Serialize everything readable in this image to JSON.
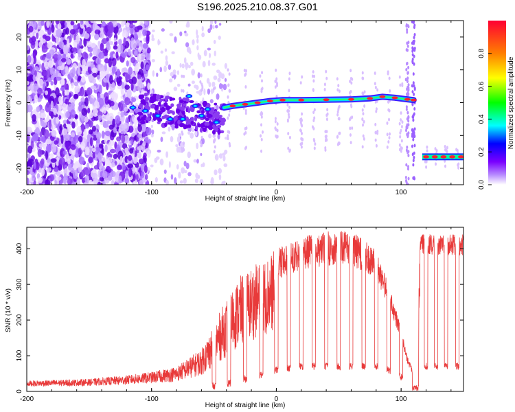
{
  "title": "S196.2025.210.08.37.G01",
  "colors": {
    "snr_line": "#e83a3a",
    "track": "#ff3b3b",
    "scatter": "#7a1fe0",
    "background": "#ffffff"
  },
  "chart_data": [
    {
      "type": "heatmap",
      "title": "S196.2025.210.08.37.G01",
      "xlabel": "Height of straight line (km)",
      "ylabel": "Frequency (Hz)",
      "xlim": [
        -200,
        150
      ],
      "ylim": [
        -25,
        25
      ],
      "x_ticks": [
        -200,
        -100,
        0,
        100
      ],
      "y_ticks": [
        -20,
        -10,
        0,
        10,
        20
      ],
      "colorbar": {
        "label": "Normalized spectral amplitude",
        "range": [
          0,
          1
        ],
        "ticks": [
          0.0,
          0.2,
          0.4,
          0.6,
          0.8
        ],
        "colormap": [
          "#ffffff",
          "#7a00ff",
          "#0000ff",
          "#00ffff",
          "#00ff00",
          "#ffff00",
          "#ff7f00",
          "#ff0033"
        ]
      },
      "track": [
        {
          "x": -115,
          "y": -1.5
        },
        {
          "x": -105,
          "y": -2.5
        },
        {
          "x": -95,
          "y": -4
        },
        {
          "x": -85,
          "y": -5
        },
        {
          "x": -75,
          "y": -5
        },
        {
          "x": -70,
          "y": 2
        },
        {
          "x": -65,
          "y": -1
        },
        {
          "x": -60,
          "y": -4
        },
        {
          "x": -55,
          "y": -2
        },
        {
          "x": -48,
          "y": -6
        },
        {
          "x": -42,
          "y": -1.5
        },
        {
          "x": -35,
          "y": -1
        },
        {
          "x": -25,
          "y": -0.5
        },
        {
          "x": -15,
          "y": 0
        },
        {
          "x": -5,
          "y": 0.5
        },
        {
          "x": 5,
          "y": 0.8
        },
        {
          "x": 20,
          "y": 0.8
        },
        {
          "x": 40,
          "y": 0.9
        },
        {
          "x": 60,
          "y": 1.0
        },
        {
          "x": 75,
          "y": 1.3
        },
        {
          "x": 85,
          "y": 1.8
        },
        {
          "x": 95,
          "y": 1.5
        },
        {
          "x": 105,
          "y": 1.0
        },
        {
          "x": 110,
          "y": 0.8
        }
      ],
      "track2": [
        {
          "x": 117,
          "y": -16.5
        },
        {
          "x": 150,
          "y": -16.5
        }
      ]
    },
    {
      "type": "line",
      "xlabel": "Height of straight line (km)",
      "ylabel": "SNR (10 * v/v)",
      "xlim": [
        -200,
        150
      ],
      "ylim": [
        0,
        460
      ],
      "x_ticks": [
        -200,
        -100,
        0,
        100
      ],
      "y_ticks": [
        0,
        100,
        200,
        300,
        400
      ],
      "series": [
        {
          "color": "#e83a3a",
          "envelope": [
            {
              "x": -200,
              "lo": 5,
              "hi": 30
            },
            {
              "x": -150,
              "lo": 5,
              "hi": 35
            },
            {
              "x": -120,
              "lo": 5,
              "hi": 45
            },
            {
              "x": -100,
              "lo": 5,
              "hi": 55
            },
            {
              "x": -80,
              "lo": 5,
              "hi": 70
            },
            {
              "x": -60,
              "lo": 5,
              "hi": 120
            },
            {
              "x": -50,
              "lo": 5,
              "hi": 190
            },
            {
              "x": -40,
              "lo": 10,
              "hi": 260
            },
            {
              "x": -30,
              "lo": 20,
              "hi": 320
            },
            {
              "x": -20,
              "lo": 30,
              "hi": 350
            },
            {
              "x": -10,
              "lo": 40,
              "hi": 370
            },
            {
              "x": 0,
              "lo": 50,
              "hi": 400
            },
            {
              "x": 20,
              "lo": 60,
              "hi": 435
            },
            {
              "x": 40,
              "lo": 60,
              "hi": 450
            },
            {
              "x": 60,
              "lo": 60,
              "hi": 450
            },
            {
              "x": 80,
              "lo": 60,
              "hi": 400
            },
            {
              "x": 90,
              "lo": 50,
              "hi": 300
            },
            {
              "x": 100,
              "lo": 30,
              "hi": 180
            },
            {
              "x": 105,
              "lo": 10,
              "hi": 100
            },
            {
              "x": 112,
              "lo": 0,
              "hi": 40
            },
            {
              "x": 115,
              "lo": 60,
              "hi": 440
            },
            {
              "x": 150,
              "lo": 60,
              "hi": 440
            }
          ],
          "dips": [
            -75,
            -62,
            -50,
            -38,
            -25,
            -12,
            0,
            10,
            20,
            30,
            40,
            50,
            60,
            70,
            80,
            90,
            100,
            120,
            128,
            136,
            145
          ]
        }
      ]
    }
  ]
}
